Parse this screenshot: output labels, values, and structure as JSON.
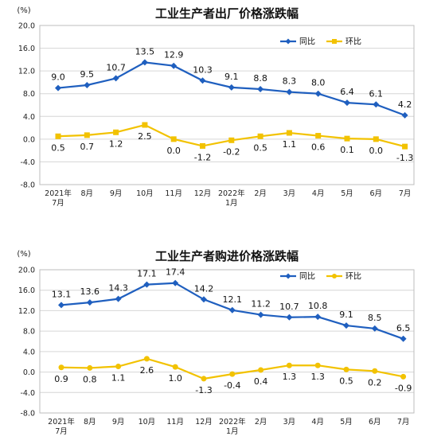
{
  "chart_data": [
    {
      "type": "line",
      "title": "工业生产者出厂价格涨跌幅",
      "unit": "(%)",
      "categories": [
        [
          "2021年",
          "7月"
        ],
        [
          "8月"
        ],
        [
          "9月"
        ],
        [
          "10月"
        ],
        [
          "11月"
        ],
        [
          "12月"
        ],
        [
          "2022年",
          "1月"
        ],
        [
          "2月"
        ],
        [
          "3月"
        ],
        [
          "4月"
        ],
        [
          "5月"
        ],
        [
          "6月"
        ],
        [
          "7月"
        ]
      ],
      "yticks": [
        "20.0",
        "16.0",
        "12.0",
        "8.0",
        "4.0",
        "0.0",
        "-4.0",
        "-8.0"
      ],
      "ylim": [
        -8,
        20
      ],
      "grid": true,
      "legend_position": "top-right",
      "series": [
        {
          "name": "同比",
          "color": "#1f5fbf",
          "marker": "diamond",
          "values": [
            9.0,
            9.5,
            10.7,
            13.5,
            12.9,
            10.3,
            9.1,
            8.8,
            8.3,
            8.0,
            6.4,
            6.1,
            4.2
          ],
          "labels": [
            "9.0",
            "9.5",
            "10.7",
            "13.5",
            "12.9",
            "10.3",
            "9.1",
            "8.8",
            "8.3",
            "8.0",
            "6.4",
            "6.1",
            "4.2"
          ]
        },
        {
          "name": "环比",
          "color": "#f2c200",
          "marker": "square",
          "values": [
            0.5,
            0.7,
            1.2,
            2.5,
            0.0,
            -1.2,
            -0.2,
            0.5,
            1.1,
            0.6,
            0.1,
            0.0,
            -1.3
          ],
          "labels": [
            "0.5",
            "0.7",
            "1.2",
            "2.5",
            "0.0",
            "-1.2",
            "-0.2",
            "0.5",
            "1.1",
            "0.6",
            "0.1",
            "0.0",
            "-1.3"
          ]
        }
      ]
    },
    {
      "type": "line",
      "title": "工业生产者购进价格涨跌幅",
      "unit": "(%)",
      "categories": [
        [
          "2021年",
          "7月"
        ],
        [
          "8月"
        ],
        [
          "9月"
        ],
        [
          "10月"
        ],
        [
          "11月"
        ],
        [
          "12月"
        ],
        [
          "2022年",
          "1月"
        ],
        [
          "2月"
        ],
        [
          "3月"
        ],
        [
          "4月"
        ],
        [
          "5月"
        ],
        [
          "6月"
        ],
        [
          "7月"
        ]
      ],
      "yticks": [
        "20.0",
        "16.0",
        "12.0",
        "8.0",
        "4.0",
        "0.0",
        "-4.0",
        "-8.0"
      ],
      "ylim": [
        -8,
        20
      ],
      "grid": true,
      "legend_position": "top-right",
      "series": [
        {
          "name": "同比",
          "color": "#1f5fbf",
          "marker": "diamond",
          "values": [
            13.1,
            13.6,
            14.3,
            17.1,
            17.4,
            14.2,
            12.1,
            11.2,
            10.7,
            10.8,
            9.1,
            8.5,
            6.5
          ],
          "labels": [
            "13.1",
            "13.6",
            "14.3",
            "17.1",
            "17.4",
            "14.2",
            "12.1",
            "11.2",
            "10.7",
            "10.8",
            "9.1",
            "8.5",
            "6.5"
          ]
        },
        {
          "name": "环比",
          "color": "#f2c200",
          "marker": "circle",
          "values": [
            0.9,
            0.8,
            1.1,
            2.6,
            1.0,
            -1.3,
            -0.4,
            0.4,
            1.3,
            1.3,
            0.5,
            0.2,
            -0.9
          ],
          "labels": [
            "0.9",
            "0.8",
            "1.1",
            "2.6",
            "1.0",
            "-1.3",
            "-0.4",
            "0.4",
            "1.3",
            "1.3",
            "0.5",
            "0.2",
            "-0.9"
          ]
        }
      ]
    }
  ]
}
